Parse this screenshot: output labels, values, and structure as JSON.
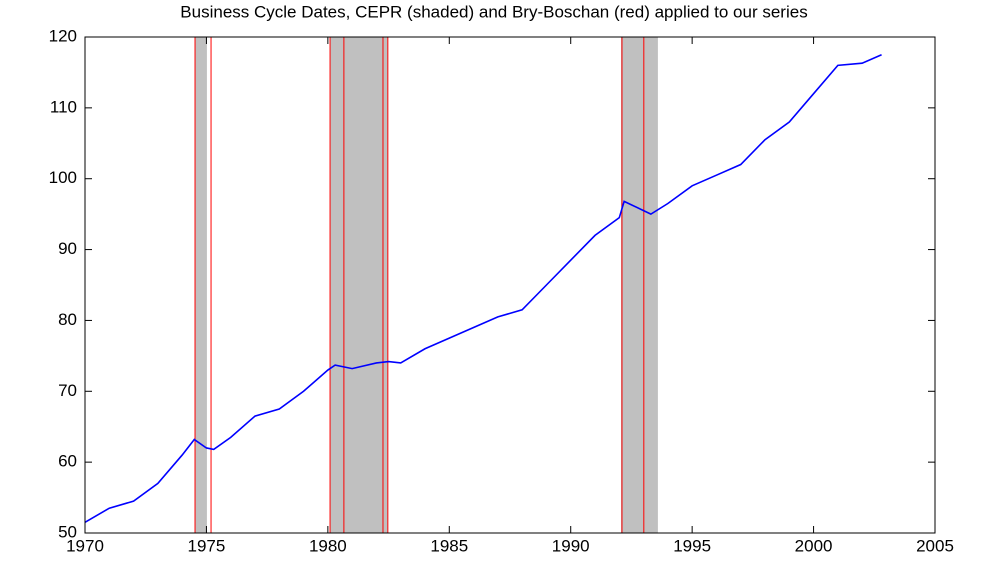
{
  "chart_data": {
    "type": "line",
    "title": "Business Cycle Dates, CEPR (shaded) and Bry-Boschan (red) applied to our series",
    "x": [
      1970,
      1971,
      1972,
      1973,
      1974,
      1974.5,
      1975,
      1975.3,
      1976,
      1977,
      1978,
      1979,
      1980,
      1980.3,
      1981,
      1982,
      1982.5,
      1983,
      1984,
      1985,
      1986,
      1987,
      1988,
      1989,
      1990,
      1991,
      1992,
      1992.2,
      1993,
      1993.3,
      1994,
      1995,
      1996,
      1997,
      1998,
      1999,
      2000,
      2001,
      2002,
      2002.8
    ],
    "series": [
      {
        "color": "#0000ff",
        "values": [
          51.5,
          53.5,
          54.5,
          57,
          61,
          63.2,
          62,
          61.8,
          63.5,
          66.5,
          67.5,
          70,
          73,
          73.7,
          73.2,
          74,
          74.2,
          74,
          76,
          77.5,
          79,
          80.5,
          81.5,
          85,
          88.5,
          92,
          94.5,
          96.8,
          95.5,
          95,
          96.5,
          99,
          100.5,
          102,
          105.5,
          108,
          112,
          116,
          116.3,
          117.5
        ]
      }
    ],
    "shaded": [
      [
        1974.53,
        1975.02
      ],
      [
        1980.09,
        1982.47
      ],
      [
        1992.07,
        1993.59
      ]
    ],
    "shade_color": "#c0c0c0",
    "markers": [
      1974.53,
      1975.19,
      1980.09,
      1980.66,
      1982.27,
      1982.47,
      1992.11,
      1993.01
    ],
    "marker_color": "#ff0000",
    "xlim": [
      1970,
      2005
    ],
    "xticks": [
      1970,
      1975,
      1980,
      1985,
      1990,
      1995,
      2000,
      2005
    ],
    "ylim": [
      50,
      120
    ],
    "yticks": [
      50,
      60,
      70,
      80,
      90,
      100,
      110,
      120
    ],
    "grid": false
  }
}
